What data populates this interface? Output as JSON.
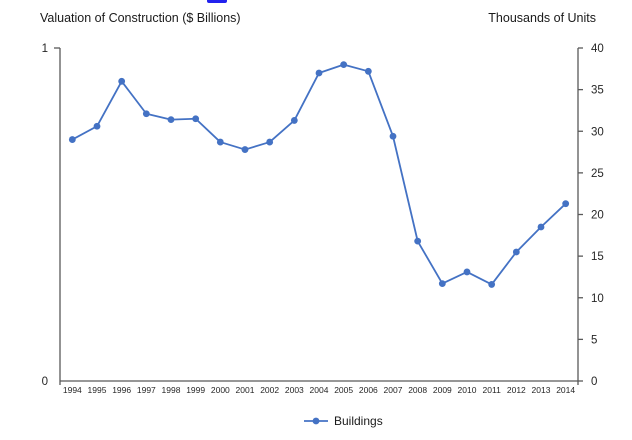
{
  "colors": {
    "series_blue": "#4472C4",
    "text": "#262626",
    "axis": "#595959",
    "background": "#ffffff",
    "top_fragment_blue": "#2222ee"
  },
  "chart_data": {
    "type": "line",
    "x": [
      1994,
      1995,
      1996,
      1997,
      1998,
      1999,
      2000,
      2001,
      2002,
      2003,
      2004,
      2005,
      2006,
      2007,
      2008,
      2009,
      2010,
      2011,
      2012,
      2013,
      2014
    ],
    "series": [
      {
        "name": "Buildings",
        "yaxis": "right",
        "color": "#4472C4",
        "marker": "circle",
        "values": [
          29.0,
          30.6,
          36.0,
          32.1,
          31.4,
          31.5,
          28.7,
          27.8,
          28.7,
          31.3,
          37.0,
          38.0,
          37.2,
          29.4,
          16.8,
          11.7,
          13.1,
          11.6,
          15.5,
          18.5,
          21.3
        ]
      }
    ],
    "left_axis": {
      "title": "Valuation of Construction ($ Billions)",
      "ylim": [
        0,
        1
      ],
      "ticks": [
        0,
        1
      ],
      "tick_labels": [
        "0",
        "1"
      ]
    },
    "right_axis": {
      "title": "Thousands of Units",
      "ylim": [
        0,
        40
      ],
      "ticks": [
        0,
        5,
        10,
        15,
        20,
        25,
        30,
        35,
        40
      ]
    },
    "legend_position": "bottom",
    "grid": false
  }
}
